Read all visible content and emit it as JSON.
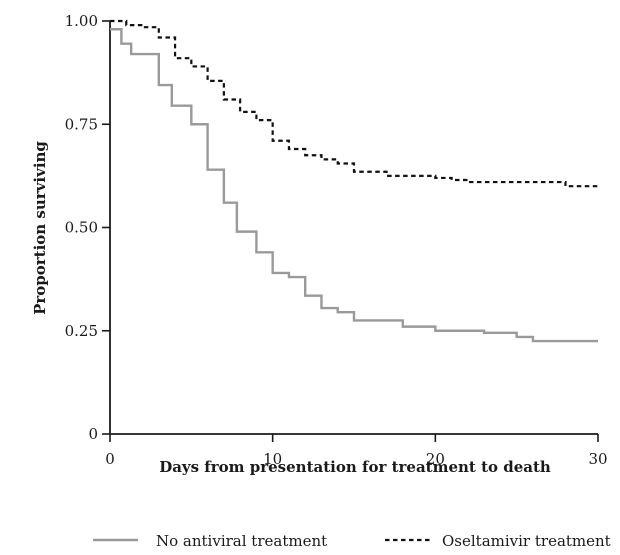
{
  "chart_data": {
    "type": "line",
    "step": true,
    "xlabel": "Days from presentation for treatment to death",
    "ylabel": "Proportion surviving",
    "xlim": [
      0,
      30
    ],
    "ylim": [
      0,
      1
    ],
    "xticks": [
      0,
      10,
      20,
      30
    ],
    "xtick_labels": [
      "0",
      "10",
      "20",
      "30"
    ],
    "yticks": [
      0,
      0.25,
      0.5,
      0.75,
      1.0
    ],
    "ytick_labels": [
      "0",
      "0.25",
      "0.50",
      "0.75",
      "1.00"
    ],
    "grid": false,
    "legend_position": "bottom",
    "series": [
      {
        "name": "No antiviral treatment",
        "color": "#9a9a9a",
        "dash": "solid",
        "x": [
          0,
          0.7,
          1.3,
          2,
          3,
          3.8,
          5,
          6,
          7,
          7.8,
          9,
          10,
          11,
          12,
          13,
          14,
          15,
          16,
          17,
          18,
          19,
          20,
          21,
          22,
          23,
          24,
          25,
          26,
          27,
          28,
          29,
          30
        ],
        "y": [
          0.98,
          0.945,
          0.92,
          0.92,
          0.845,
          0.795,
          0.75,
          0.64,
          0.56,
          0.49,
          0.44,
          0.39,
          0.38,
          0.335,
          0.305,
          0.295,
          0.275,
          0.275,
          0.275,
          0.26,
          0.26,
          0.25,
          0.25,
          0.25,
          0.245,
          0.245,
          0.235,
          0.225,
          0.225,
          0.225,
          0.225,
          0.225
        ]
      },
      {
        "name": "Oseltamivir treatment",
        "color": "#111111",
        "dash": "dashed",
        "x": [
          0,
          0.5,
          1,
          2,
          3,
          4,
          5,
          6,
          7,
          8,
          9,
          10,
          11,
          12,
          13,
          14,
          15,
          16,
          17,
          18,
          19,
          20,
          21,
          22,
          23,
          24,
          25,
          26,
          27,
          28,
          29,
          30
        ],
        "y": [
          1.0,
          1.0,
          0.99,
          0.985,
          0.96,
          0.91,
          0.89,
          0.855,
          0.81,
          0.78,
          0.76,
          0.71,
          0.69,
          0.675,
          0.665,
          0.655,
          0.635,
          0.635,
          0.625,
          0.625,
          0.625,
          0.62,
          0.615,
          0.61,
          0.61,
          0.61,
          0.61,
          0.61,
          0.61,
          0.6,
          0.6,
          0.6
        ]
      }
    ]
  }
}
